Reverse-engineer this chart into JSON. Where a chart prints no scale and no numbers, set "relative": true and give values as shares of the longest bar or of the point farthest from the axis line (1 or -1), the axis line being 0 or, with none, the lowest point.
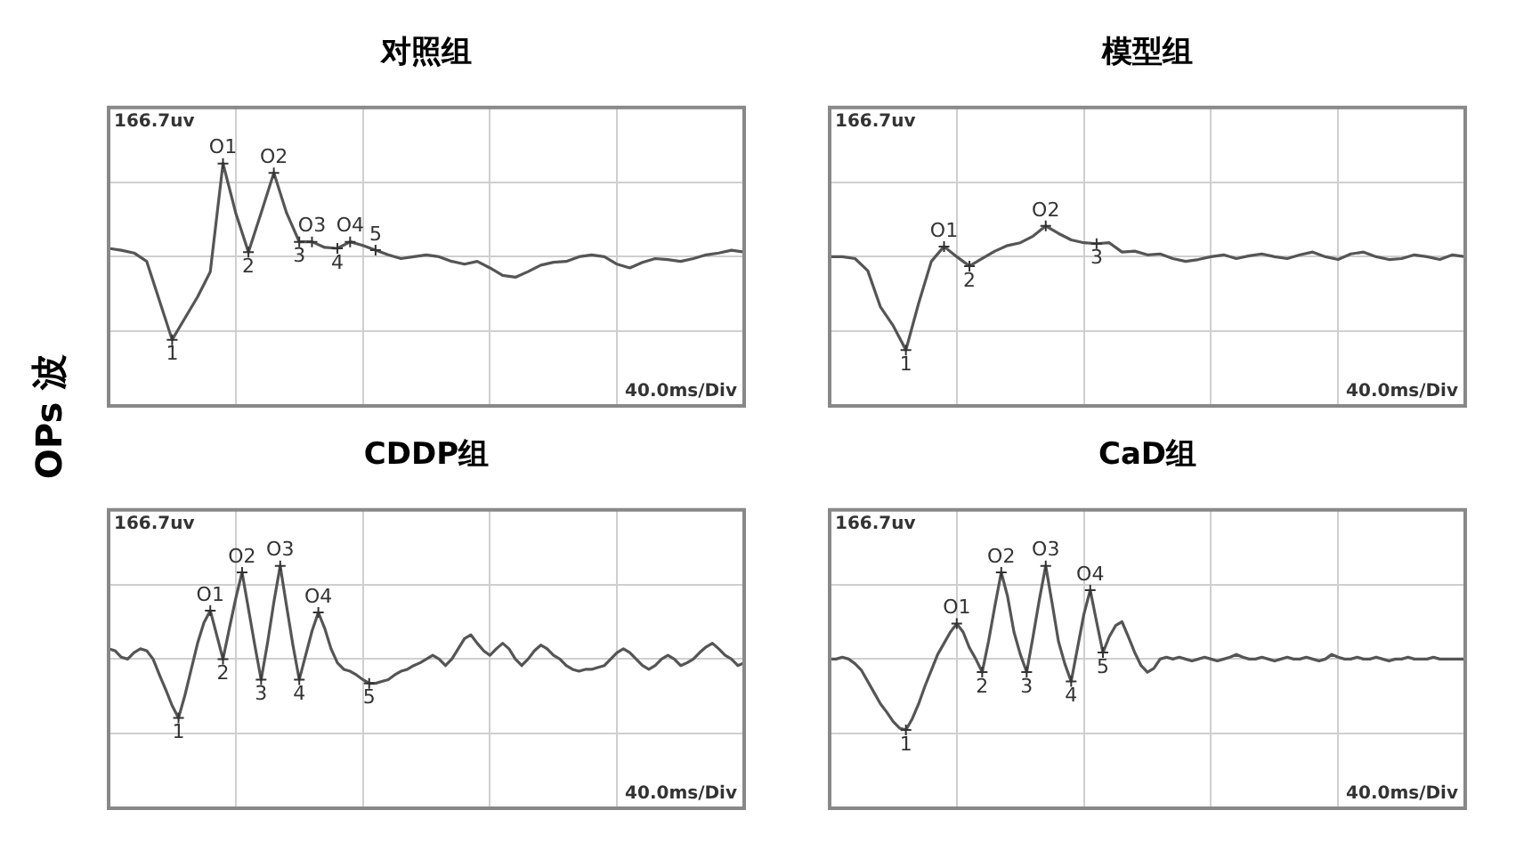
{
  "chart_data": [
    {
      "type": "line",
      "title": "对照组",
      "ylabel": "OPs 波",
      "relative": true,
      "grid": true,
      "color": "#555555",
      "categories": [
        null,
        null,
        null,
        null,
        null,
        null,
        null,
        null,
        null,
        null,
        null,
        null,
        null,
        null,
        null,
        null,
        null,
        null,
        null,
        null,
        null,
        null,
        null,
        null,
        null,
        null,
        null,
        null,
        null,
        null,
        null,
        null,
        null,
        null,
        null,
        null,
        null,
        null,
        null,
        null,
        null,
        null,
        null,
        null,
        null,
        null,
        null,
        null,
        null,
        null,
        null
      ],
      "values": [
        0.09,
        0.07,
        0.04,
        -0.05,
        -0.47,
        -0.89,
        -0.66,
        -0.43,
        -0.16,
        1,
        0.47,
        0.05,
        0.47,
        0.9,
        0.47,
        0.16,
        0.16,
        0.1,
        0.09,
        0.16,
        0.12,
        0.07,
        0.02,
        -0.02,
        0,
        0.02,
        0,
        -0.05,
        -0.08,
        -0.05,
        -0.12,
        -0.2,
        -0.22,
        -0.16,
        -0.09,
        -0.06,
        -0.05,
        0,
        0.02,
        0,
        -0.08,
        -0.12,
        -0.06,
        -0.02,
        -0.03,
        -0.05,
        -0.02,
        0.02,
        0.04,
        0.07,
        0.05
      ],
      "annotations": [
        "166.7uv",
        "40.0ms/Div",
        {
          "text": "1",
          "y": -0.89
        },
        {
          "text": "O1",
          "y": 1
        },
        {
          "text": "2",
          "y": 0.05
        },
        {
          "text": "O2",
          "y": 0.9
        },
        {
          "text": "3",
          "y": 0.16
        },
        {
          "text": "O3",
          "y": 0.16
        },
        {
          "text": "4",
          "y": 0.09
        },
        {
          "text": "O4",
          "y": 0.16
        },
        {
          "text": "5",
          "y": 0.07
        }
      ]
    },
    {
      "type": "line",
      "title": "模型组",
      "relative": true,
      "grid": true,
      "color": "#555555",
      "categories": [
        null,
        null,
        null,
        null,
        null,
        null,
        null,
        null,
        null,
        null,
        null,
        null,
        null,
        null,
        null,
        null,
        null,
        null,
        null,
        null,
        null,
        null,
        null,
        null,
        null,
        null,
        null,
        null,
        null,
        null,
        null,
        null,
        null,
        null,
        null,
        null,
        null,
        null,
        null,
        null,
        null,
        null,
        null,
        null,
        null,
        null,
        null,
        null,
        null,
        null,
        null
      ],
      "values": [
        0,
        0,
        -0.02,
        -0.15,
        -0.54,
        -0.74,
        -1,
        -0.5,
        -0.05,
        0.11,
        0,
        -0.1,
        -0.02,
        0.06,
        0.12,
        0.15,
        0.22,
        0.33,
        0.25,
        0.18,
        0.15,
        0.14,
        0.15,
        0.05,
        0.06,
        0.02,
        0.03,
        -0.02,
        -0.05,
        -0.03,
        0,
        0.02,
        -0.02,
        0.01,
        0.03,
        0,
        -0.02,
        0.02,
        0.05,
        0,
        -0.03,
        0.03,
        0.05,
        0,
        -0.03,
        -0.02,
        0.02,
        0,
        -0.03,
        0.02,
        0
      ],
      "annotations": [
        "166.7uv",
        "40.0ms/Div",
        {
          "text": "1",
          "y": -1
        },
        {
          "text": "O1",
          "y": 0.11
        },
        {
          "text": "2",
          "y": -0.1
        },
        {
          "text": "O2",
          "y": 0.33
        },
        {
          "text": "3",
          "y": 0.14
        }
      ]
    },
    {
      "type": "line",
      "title": "CDDP组",
      "relative": true,
      "grid": true,
      "color": "#555555",
      "categories": [
        null,
        null,
        null,
        null,
        null,
        null,
        null,
        null,
        null,
        null,
        null,
        null,
        null,
        null,
        null,
        null,
        null,
        null,
        null,
        null,
        null,
        null,
        null,
        null,
        null,
        null,
        null,
        null,
        null,
        null,
        null,
        null,
        null,
        null,
        null,
        null,
        null,
        null,
        null,
        null,
        null,
        null,
        null,
        null,
        null,
        null,
        null,
        null,
        null,
        null,
        null,
        null,
        null,
        null,
        null,
        null,
        null,
        null,
        null,
        null,
        null,
        null,
        null,
        null,
        null,
        null,
        null,
        null,
        null,
        null,
        null,
        null,
        null,
        null,
        null,
        null,
        null,
        null,
        null,
        null,
        null,
        null,
        null,
        null,
        null,
        null,
        null,
        null,
        null,
        null,
        null,
        null,
        null,
        null,
        null,
        null,
        null,
        null,
        null,
        null,
        null
      ],
      "values": [
        0.11,
        0.09,
        0.02,
        0,
        0.07,
        0.11,
        0.09,
        0,
        -0.17,
        -0.33,
        -0.5,
        -0.63,
        -0.39,
        -0.11,
        0.17,
        0.39,
        0.52,
        0.26,
        0,
        0.33,
        0.65,
        0.93,
        0.54,
        0.15,
        -0.22,
        0.17,
        0.61,
        1,
        0.57,
        0.15,
        -0.22,
        0.04,
        0.3,
        0.5,
        0.33,
        0.11,
        -0.04,
        -0.11,
        -0.13,
        -0.17,
        -0.22,
        -0.26,
        -0.26,
        -0.24,
        -0.22,
        -0.17,
        -0.13,
        -0.11,
        -0.07,
        -0.04,
        0,
        0.04,
        0,
        -0.07,
        0,
        0.11,
        0.22,
        0.26,
        0.17,
        0.09,
        0.04,
        0.11,
        0.17,
        0.11,
        0,
        -0.07,
        0,
        0.09,
        0.15,
        0.11,
        0.04,
        0,
        -0.07,
        -0.11,
        -0.13,
        -0.11,
        -0.11,
        -0.09,
        -0.07,
        0,
        0.07,
        0.11,
        0.07,
        0,
        -0.07,
        -0.11,
        -0.07,
        0,
        0.04,
        0,
        -0.07,
        -0.04,
        0,
        0.07,
        0.13,
        0.17,
        0.11,
        0.04,
        0,
        -0.07,
        -0.04
      ],
      "annotations": [
        "166.7uv",
        "40.0ms/Div",
        {
          "text": "1",
          "y": -0.63
        },
        {
          "text": "O1",
          "y": 0.52
        },
        {
          "text": "2",
          "y": 0
        },
        {
          "text": "O2",
          "y": 0.93
        },
        {
          "text": "3",
          "y": -0.22
        },
        {
          "text": "O3",
          "y": 1
        },
        {
          "text": "4",
          "y": -0.22
        },
        {
          "text": "O4",
          "y": 0.5
        },
        {
          "text": "5",
          "y": -0.26
        }
      ]
    },
    {
      "type": "line",
      "title": "CaD组",
      "relative": true,
      "grid": true,
      "color": "#555555",
      "categories": [
        null,
        null,
        null,
        null,
        null,
        null,
        null,
        null,
        null,
        null,
        null,
        null,
        null,
        null,
        null,
        null,
        null,
        null,
        null,
        null,
        null,
        null,
        null,
        null,
        null,
        null,
        null,
        null,
        null,
        null,
        null,
        null,
        null,
        null,
        null,
        null,
        null,
        null,
        null,
        null,
        null,
        null,
        null,
        null,
        null,
        null,
        null,
        null,
        null,
        null,
        null,
        null,
        null,
        null,
        null,
        null,
        null,
        null,
        null,
        null,
        null,
        null,
        null,
        null,
        null,
        null,
        null,
        null,
        null,
        null,
        null,
        null,
        null,
        null,
        null,
        null,
        null,
        null,
        null,
        null,
        null,
        null,
        null,
        null,
        null,
        null,
        null,
        null,
        null,
        null,
        null,
        null,
        null,
        null,
        null,
        null,
        null,
        null,
        null,
        null,
        null
      ],
      "values": [
        0,
        0,
        0.02,
        0,
        -0.05,
        -0.12,
        -0.24,
        -0.36,
        -0.48,
        -0.57,
        -0.67,
        -0.74,
        -0.76,
        -0.64,
        -0.48,
        -0.29,
        -0.12,
        0.05,
        0.17,
        0.29,
        0.38,
        0.29,
        0.12,
        0,
        -0.14,
        0.19,
        0.57,
        0.93,
        0.67,
        0.29,
        0.05,
        -0.14,
        0.24,
        0.64,
        1,
        0.6,
        0.19,
        -0.05,
        -0.24,
        0.12,
        0.48,
        0.74,
        0.4,
        0.07,
        0.24,
        0.36,
        0.4,
        0.24,
        0.07,
        -0.07,
        -0.14,
        -0.1,
        0,
        0.02,
        0,
        0.02,
        0,
        -0.02,
        0,
        0.02,
        0,
        -0.02,
        0,
        0.02,
        0.05,
        0.02,
        0,
        0,
        0.02,
        0,
        -0.02,
        0,
        0.02,
        0,
        0,
        0.02,
        0,
        -0.02,
        0,
        0.05,
        0.02,
        0,
        0,
        0.02,
        0,
        0,
        0.02,
        0,
        -0.02,
        0,
        0,
        0.02,
        0,
        0,
        0,
        0.02,
        0,
        0,
        0,
        0,
        0
      ],
      "annotations": [
        "166.7uv",
        "40.0ms/Div",
        {
          "text": "1",
          "y": -0.76
        },
        {
          "text": "O1",
          "y": 0.38
        },
        {
          "text": "2",
          "y": -0.14
        },
        {
          "text": "O2",
          "y": 0.93
        },
        {
          "text": "3",
          "y": -0.14
        },
        {
          "text": "O3",
          "y": 1
        },
        {
          "text": "4",
          "y": -0.24
        },
        {
          "text": "O4",
          "y": 0.74
        },
        {
          "text": "5",
          "y": 0.07
        }
      ]
    }
  ]
}
